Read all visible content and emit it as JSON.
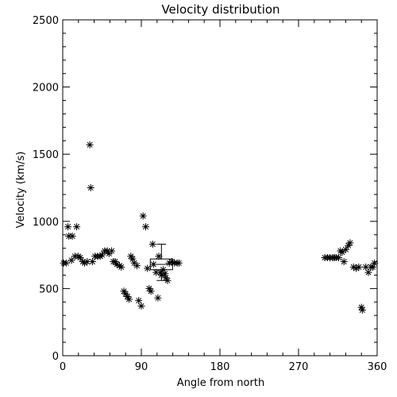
{
  "chart_data": {
    "type": "scatter",
    "title": "Velocity distribution",
    "xlabel": "Angle from north",
    "ylabel": "Velocity (km/s)",
    "xlim": [
      0,
      360
    ],
    "ylim": [
      0,
      2500
    ],
    "xticks": [
      0,
      90,
      180,
      270,
      360
    ],
    "yticks": [
      0,
      500,
      1000,
      1500,
      2000,
      2500
    ],
    "grid": false,
    "marker": "asterisk",
    "series": [
      {
        "points": [
          [
            1,
            690
          ],
          [
            4,
            690
          ],
          [
            6,
            960
          ],
          [
            7,
            890
          ],
          [
            11,
            890
          ],
          [
            10,
            710
          ],
          [
            14,
            740
          ],
          [
            16,
            960
          ],
          [
            18,
            740
          ],
          [
            20,
            730
          ],
          [
            23,
            700
          ],
          [
            25,
            690
          ],
          [
            28,
            700
          ],
          [
            31,
            1570
          ],
          [
            32,
            1250
          ],
          [
            34,
            700
          ],
          [
            37,
            740
          ],
          [
            40,
            740
          ],
          [
            43,
            740
          ],
          [
            45,
            750
          ],
          [
            48,
            780
          ],
          [
            51,
            780
          ],
          [
            53,
            760
          ],
          [
            56,
            780
          ],
          [
            58,
            700
          ],
          [
            60,
            700
          ],
          [
            62,
            680
          ],
          [
            65,
            670
          ],
          [
            67,
            660
          ],
          [
            70,
            480
          ],
          [
            72,
            460
          ],
          [
            74,
            440
          ],
          [
            76,
            420
          ],
          [
            78,
            740
          ],
          [
            80,
            720
          ],
          [
            82,
            690
          ],
          [
            85,
            670
          ],
          [
            87,
            410
          ],
          [
            90,
            370
          ],
          [
            92,
            1040
          ],
          [
            95,
            960
          ],
          [
            97,
            650
          ],
          [
            99,
            500
          ],
          [
            101,
            480
          ],
          [
            103,
            830
          ],
          [
            104,
            680
          ],
          [
            107,
            620
          ],
          [
            109,
            430
          ],
          [
            110,
            740
          ],
          [
            112,
            620
          ],
          [
            113,
            600
          ],
          [
            115,
            640
          ],
          [
            117,
            610
          ],
          [
            118,
            580
          ],
          [
            120,
            560
          ],
          [
            122,
            690
          ],
          [
            125,
            700
          ],
          [
            128,
            690
          ],
          [
            131,
            690
          ],
          [
            133,
            690
          ],
          [
            300,
            730
          ],
          [
            303,
            730
          ],
          [
            306,
            730
          ],
          [
            309,
            730
          ],
          [
            311,
            730
          ],
          [
            313,
            730
          ],
          [
            316,
            730
          ],
          [
            318,
            780
          ],
          [
            320,
            770
          ],
          [
            322,
            700
          ],
          [
            324,
            790
          ],
          [
            327,
            820
          ],
          [
            329,
            840
          ],
          [
            333,
            660
          ],
          [
            336,
            650
          ],
          [
            339,
            660
          ],
          [
            342,
            360
          ],
          [
            343,
            340
          ],
          [
            347,
            660
          ],
          [
            350,
            620
          ],
          [
            353,
            660
          ],
          [
            355,
            660
          ],
          [
            357,
            690
          ]
        ]
      }
    ],
    "boxplot": {
      "x": 113,
      "min": 560,
      "q1": 640,
      "median": 680,
      "q3": 720,
      "max": 830
    }
  }
}
